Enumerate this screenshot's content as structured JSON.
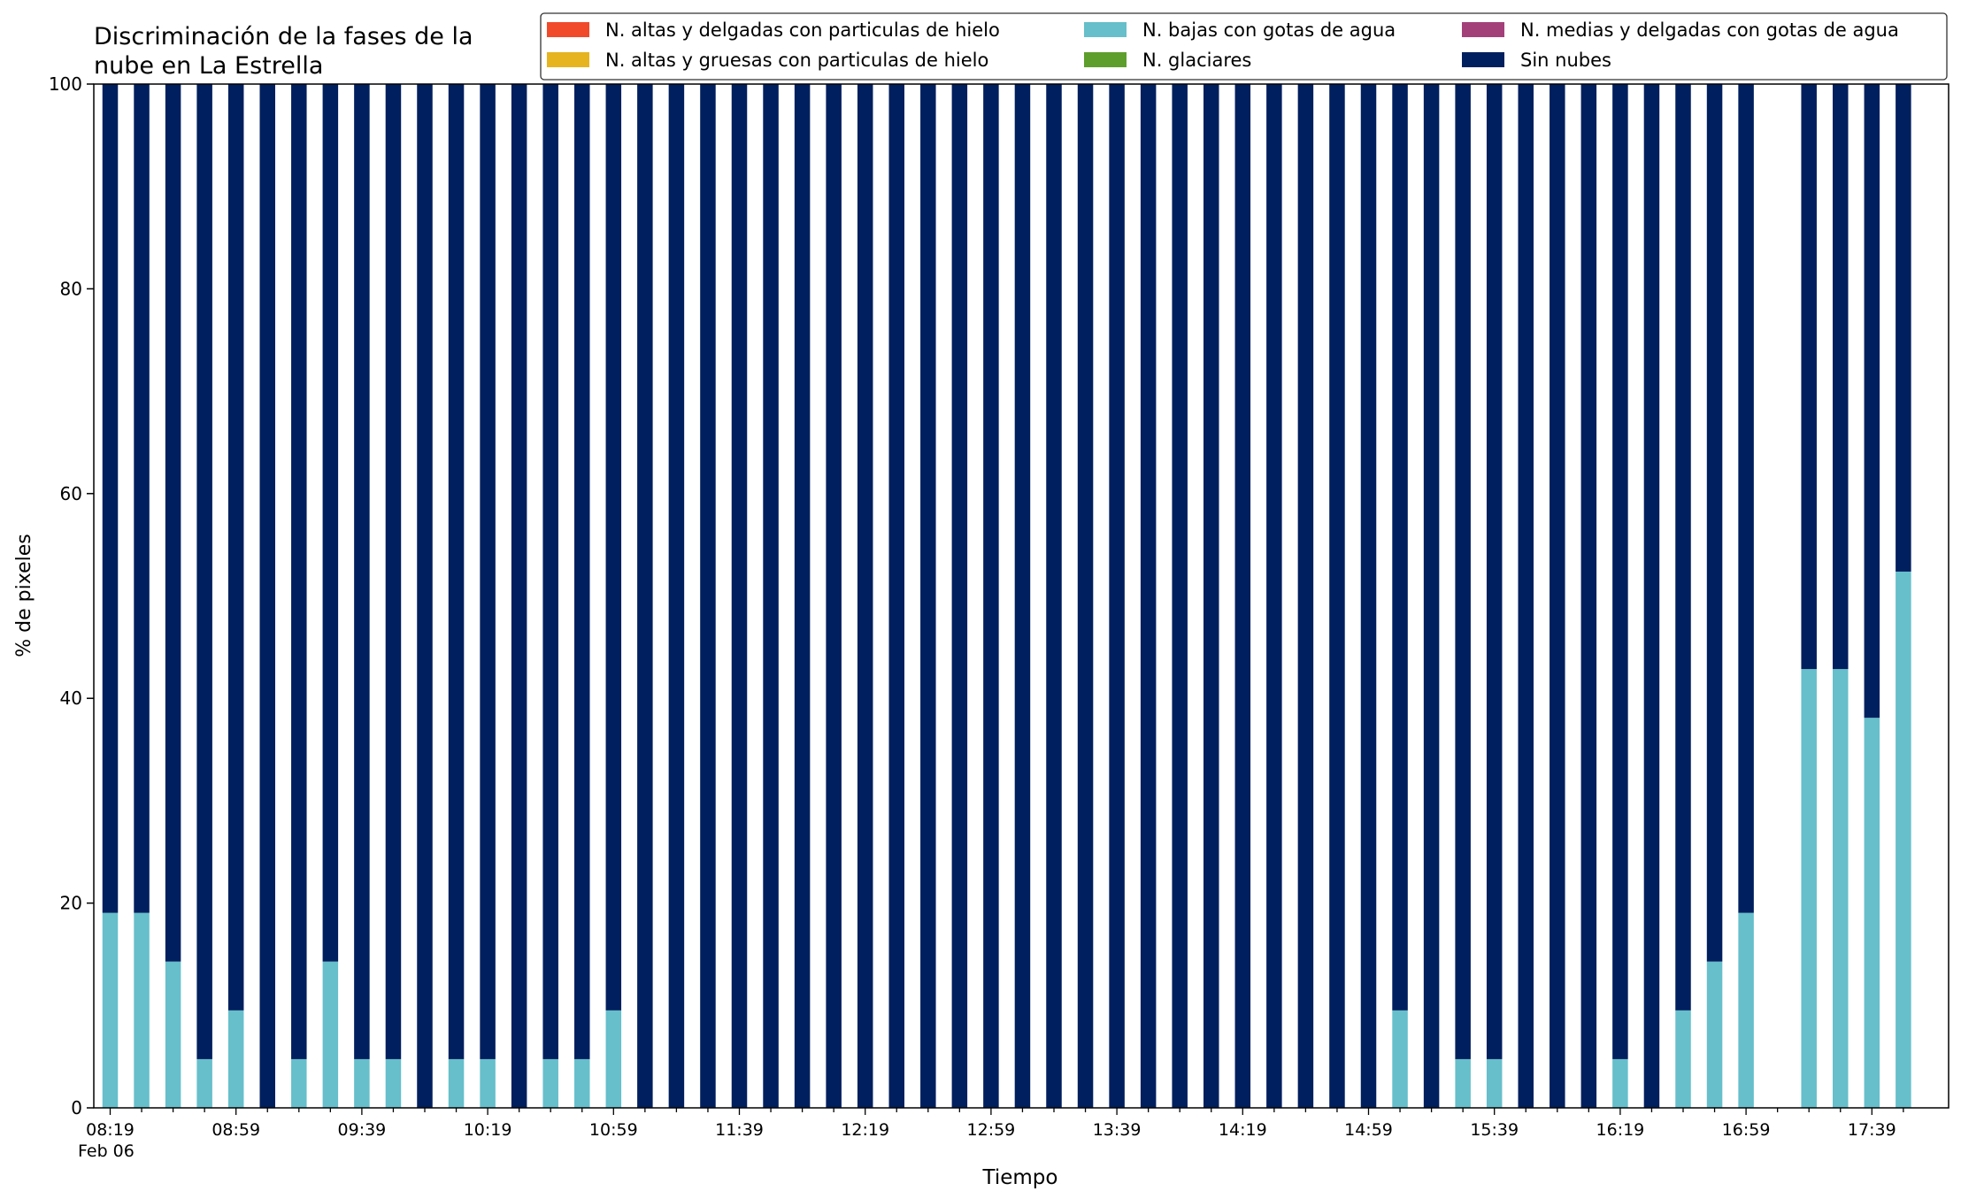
{
  "chart_data": {
    "type": "bar",
    "stacked": true,
    "title_line1": "Discriminación de la fases de la",
    "title_line2": "nube en La Estrella",
    "xlabel": "Tiempo",
    "ylabel": "% de pixeles",
    "ylim": [
      0,
      100
    ],
    "yticks": [
      "0",
      "20",
      "40",
      "60",
      "80",
      "100"
    ],
    "xticks": [
      "08:19",
      "08:59",
      "09:39",
      "10:19",
      "10:59",
      "11:39",
      "12:19",
      "12:59",
      "13:39",
      "14:19",
      "14:59",
      "15:39",
      "16:19",
      "16:59",
      "17:39"
    ],
    "date_label": "Feb 06",
    "grid": false,
    "legend_position": "top-right",
    "legend": [
      {
        "name": "N. altas y delgadas con particulas de hielo",
        "color": "#f04a2b"
      },
      {
        "name": "N. bajas con gotas de agua",
        "color": "#66bfcb"
      },
      {
        "name": "N. medias y delgadas con gotas de agua",
        "color": "#a3407a"
      },
      {
        "name": "N. altas y gruesas con particulas de hielo",
        "color": "#e6b41f"
      },
      {
        "name": "N. glaciares",
        "color": "#5e9e2c"
      },
      {
        "name": "Sin nubes",
        "color": "#001f5e"
      }
    ],
    "times": [
      "08:19",
      "08:29",
      "08:39",
      "08:49",
      "08:59",
      "09:09",
      "09:19",
      "09:29",
      "09:39",
      "09:49",
      "09:59",
      "10:09",
      "10:19",
      "10:29",
      "10:39",
      "10:49",
      "10:59",
      "11:09",
      "11:19",
      "11:29",
      "11:39",
      "11:49",
      "11:59",
      "12:09",
      "12:19",
      "12:29",
      "12:39",
      "12:49",
      "12:59",
      "13:09",
      "13:19",
      "13:29",
      "13:39",
      "13:49",
      "13:59",
      "14:09",
      "14:19",
      "14:29",
      "14:39",
      "14:49",
      "14:59",
      "15:09",
      "15:19",
      "15:29",
      "15:39",
      "15:49",
      "15:59",
      "16:09",
      "16:19",
      "16:29",
      "16:39",
      "16:49",
      "16:59",
      "17:09",
      "17:19",
      "17:29",
      "17:39",
      "17:49"
    ],
    "series": [
      {
        "name": "N. bajas con gotas de agua",
        "color": "#66bfcb",
        "values": [
          19.05,
          19.05,
          14.29,
          4.76,
          9.52,
          0,
          4.76,
          14.29,
          4.76,
          4.76,
          0,
          4.76,
          4.76,
          0,
          4.76,
          4.76,
          9.52,
          0,
          0,
          0,
          0,
          0,
          0,
          0,
          0,
          0,
          0,
          0,
          0,
          0,
          0,
          0,
          0,
          0,
          0,
          0,
          0,
          0,
          0,
          0,
          0,
          9.52,
          0,
          4.76,
          4.76,
          0,
          0,
          0,
          4.76,
          0,
          9.52,
          14.29,
          19.05,
          null,
          42.86,
          42.86,
          38.1,
          52.38
        ]
      },
      {
        "name": "Sin nubes",
        "color": "#001f5e",
        "values": [
          80.95,
          80.95,
          85.71,
          95.24,
          90.48,
          100,
          95.24,
          85.71,
          95.24,
          95.24,
          100,
          95.24,
          95.24,
          100,
          95.24,
          95.24,
          90.48,
          100,
          100,
          100,
          100,
          100,
          100,
          100,
          100,
          100,
          100,
          100,
          100,
          100,
          100,
          100,
          100,
          100,
          100,
          100,
          100,
          100,
          100,
          100,
          100,
          90.48,
          100,
          95.24,
          95.24,
          100,
          100,
          100,
          95.24,
          100,
          90.48,
          85.71,
          80.95,
          null,
          57.14,
          57.14,
          61.9,
          47.62
        ]
      }
    ]
  }
}
